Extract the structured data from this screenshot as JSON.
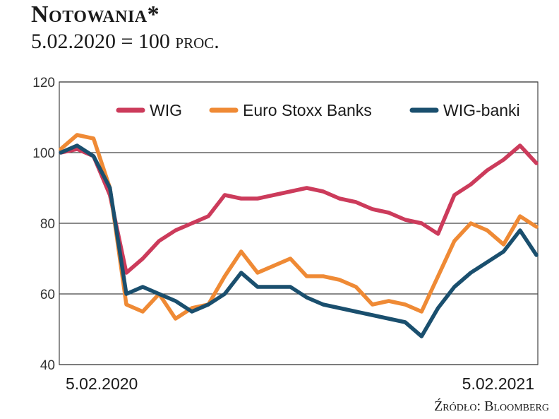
{
  "header": {
    "title": "Notowania*",
    "subtitle": "5.02.2020 = 100 proc."
  },
  "footer": {
    "source": "Źródło: Bloomberg"
  },
  "colors": {
    "WIG": "#cc3b5b",
    "Euro Stoxx Banks": "#ef8a35",
    "WIG-banki": "#1a4f6e"
  },
  "chart_data": {
    "type": "line",
    "title": "",
    "xlabel": "",
    "ylabel": "",
    "ylim": [
      40,
      120
    ],
    "y_ticks": [
      "120",
      "100",
      "80",
      "60",
      "40"
    ],
    "x_tick_labels": [
      "5.02.2020",
      "5.02.2021"
    ],
    "grid": "horizontal",
    "legend_position": "top",
    "x": [
      "2020-02",
      "2020-02",
      "2020-02",
      "2020-03",
      "2020-03",
      "2020-03",
      "2020-03",
      "2020-04",
      "2020-04",
      "2020-05",
      "2020-05",
      "2020-06",
      "2020-06",
      "2020-06",
      "2020-07",
      "2020-07",
      "2020-08",
      "2020-08",
      "2020-09",
      "2020-09",
      "2020-10",
      "2020-10",
      "2020-10",
      "2020-11",
      "2020-11",
      "2020-12",
      "2020-12",
      "2021-01",
      "2021-01",
      "2021-02"
    ],
    "series": [
      {
        "name": "WIG",
        "values": [
          100,
          101,
          99,
          88,
          66,
          70,
          75,
          78,
          80,
          82,
          88,
          87,
          87,
          88,
          89,
          90,
          89,
          87,
          86,
          84,
          83,
          81,
          80,
          77,
          88,
          91,
          95,
          98,
          102,
          97
        ]
      },
      {
        "name": "Euro Stoxx Banks",
        "values": [
          101,
          105,
          104,
          90,
          57,
          55,
          60,
          53,
          56,
          57,
          65,
          72,
          66,
          68,
          70,
          65,
          65,
          64,
          62,
          57,
          58,
          57,
          55,
          65,
          75,
          80,
          78,
          74,
          82,
          79
        ]
      },
      {
        "name": "WIG-banki",
        "values": [
          100,
          102,
          99,
          90,
          60,
          62,
          60,
          58,
          55,
          57,
          60,
          66,
          62,
          62,
          62,
          59,
          57,
          56,
          55,
          54,
          53,
          52,
          48,
          56,
          62,
          66,
          69,
          72,
          78,
          71
        ]
      }
    ]
  }
}
